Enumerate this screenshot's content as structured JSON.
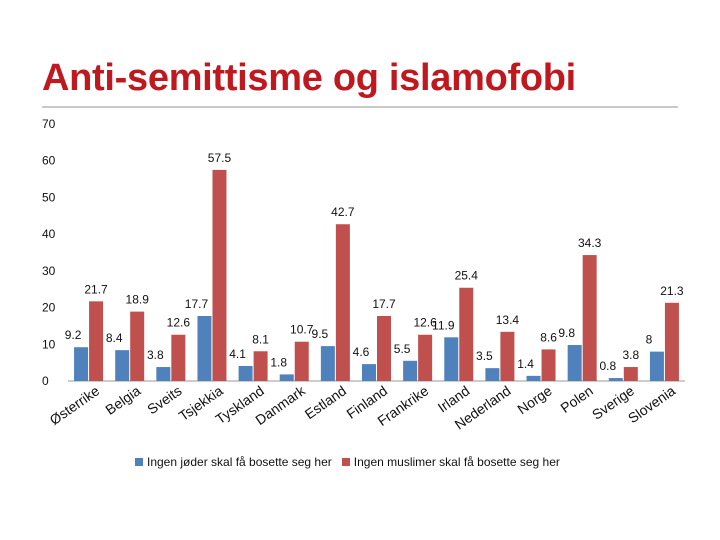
{
  "chart_data": {
    "type": "bar",
    "title": "Anti-semittisme og islamofobi",
    "categories": [
      "Østerrike",
      "Belgia",
      "Sveits",
      "Tsjekkia",
      "Tyskland",
      "Danmark",
      "Estland",
      "Finland",
      "Frankrike",
      "Irland",
      "Nederland",
      "Norge",
      "Polen",
      "Sverige",
      "Slovenia"
    ],
    "series": [
      {
        "name": "Ingen jøder skal få bosette seg her",
        "color": "#4f81bd",
        "values": [
          9.2,
          8.4,
          3.8,
          17.7,
          4.1,
          1.8,
          9.5,
          4.6,
          5.5,
          11.9,
          3.5,
          1.4,
          9.8,
          0.8,
          8
        ]
      },
      {
        "name": "Ingen muslimer skal få bosette seg her",
        "color": "#c0504d",
        "values": [
          21.7,
          18.9,
          12.6,
          57.5,
          8.1,
          10.7,
          42.7,
          17.7,
          12.6,
          25.4,
          13.4,
          8.6,
          34.3,
          3.8,
          21.3
        ]
      }
    ],
    "yticks": [
      0,
      10,
      20,
      30,
      40,
      50,
      60,
      70
    ],
    "ylim": [
      0,
      70
    ],
    "xlabel": "",
    "ylabel": "",
    "legend_position": "bottom"
  }
}
